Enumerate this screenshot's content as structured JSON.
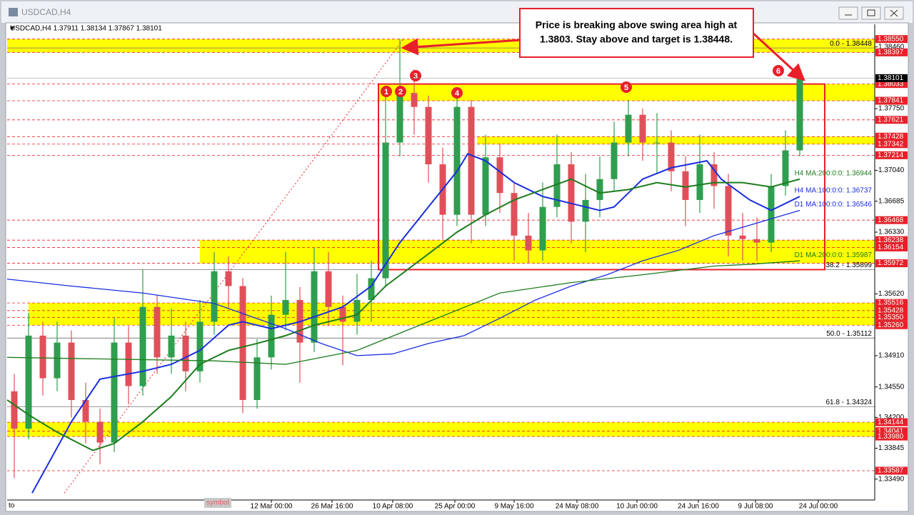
{
  "window_title": "USDCAD,H4",
  "chart_data": {
    "type": "candlestick",
    "info_line": "USDCAD,H4  1.37911 1.38134 1.37867 1.38101",
    "axis_extra": [
      "to",
      "symbol"
    ],
    "colors": {
      "up": "#2f9e4f",
      "down": "#e0505a"
    },
    "open": [
      1.345,
      1.3407,
      1.3514,
      1.3465,
      1.3506,
      1.344,
      1.3415,
      1.3391,
      1.3506,
      1.3456,
      1.3547,
      1.3489,
      1.3514,
      1.3473,
      1.353,
      1.3588,
      1.3571,
      1.344,
      1.3489,
      1.3538,
      1.3555,
      1.3506,
      1.3588,
      1.3547,
      1.353,
      1.3555,
      1.358,
      1.3736,
      1.3793,
      1.3777,
      1.3711,
      1.3653,
      1.3777,
      1.3653,
      1.3719,
      1.3678,
      1.3629,
      1.3612,
      1.3662,
      1.3711,
      1.3645,
      1.367,
      1.3694,
      1.3736,
      1.3768,
      1.3736,
      1.3736,
      1.3703,
      1.367,
      1.3711,
      1.3686,
      1.3629,
      1.3625,
      1.3621,
      1.3686,
      1.3727
    ],
    "high": [
      1.347,
      1.354,
      1.353,
      1.353,
      1.352,
      1.346,
      1.343,
      1.3535,
      1.3525,
      1.359,
      1.356,
      1.3545,
      1.353,
      1.3555,
      1.361,
      1.3605,
      1.358,
      1.351,
      1.356,
      1.361,
      1.357,
      1.3615,
      1.361,
      1.356,
      1.3585,
      1.36,
      1.379,
      1.3855,
      1.382,
      1.379,
      1.373,
      1.379,
      1.3785,
      1.3745,
      1.3735,
      1.369,
      1.3655,
      1.369,
      1.3745,
      1.3725,
      1.37,
      1.372,
      1.376,
      1.3785,
      1.3775,
      1.377,
      1.375,
      1.372,
      1.3745,
      1.3725,
      1.37,
      1.3655,
      1.365,
      1.37,
      1.375,
      1.3813
    ],
    "low": [
      1.335,
      1.3395,
      1.3445,
      1.345,
      1.342,
      1.339,
      1.3366,
      1.338,
      1.3435,
      1.3445,
      1.347,
      1.347,
      1.345,
      1.346,
      1.3515,
      1.3545,
      1.3425,
      1.343,
      1.3475,
      1.352,
      1.346,
      1.3495,
      1.3525,
      1.348,
      1.3515,
      1.353,
      1.357,
      1.372,
      1.3745,
      1.369,
      1.3625,
      1.364,
      1.362,
      1.364,
      1.3655,
      1.36,
      1.3597,
      1.36,
      1.365,
      1.362,
      1.361,
      1.365,
      1.368,
      1.372,
      1.3715,
      1.37,
      1.368,
      1.364,
      1.3655,
      1.366,
      1.3605,
      1.36,
      1.36,
      1.361,
      1.3675,
      1.372
    ],
    "close": [
      1.3407,
      1.3514,
      1.3465,
      1.3506,
      1.344,
      1.3415,
      1.3391,
      1.3506,
      1.3456,
      1.3547,
      1.3489,
      1.3514,
      1.3473,
      1.353,
      1.3588,
      1.3571,
      1.344,
      1.3489,
      1.3538,
      1.3555,
      1.3506,
      1.3588,
      1.3547,
      1.353,
      1.3555,
      1.358,
      1.3736,
      1.3793,
      1.3777,
      1.3711,
      1.3653,
      1.3777,
      1.3653,
      1.3719,
      1.3678,
      1.3629,
      1.3612,
      1.3662,
      1.3711,
      1.3645,
      1.367,
      1.3694,
      1.3736,
      1.3768,
      1.3736,
      1.3736,
      1.3703,
      1.367,
      1.3711,
      1.3686,
      1.3629,
      1.3625,
      1.3621,
      1.3686,
      1.3727,
      1.381
    ],
    "xlim": [
      -0.5,
      60.25
    ],
    "xticks": [
      {
        "value": 18,
        "label": "12 Mar 00:00"
      },
      {
        "value": 22.25,
        "label": "26 Mar 16:00"
      },
      {
        "value": 26.5,
        "label": "10 Apr 08:00"
      },
      {
        "value": 30.85,
        "label": "25 Apr 00:00"
      },
      {
        "value": 35,
        "label": "9 May 16:00"
      },
      {
        "value": 39.4,
        "label": "24 May 08:00"
      },
      {
        "value": 43.6,
        "label": "10 Jun 00:00"
      },
      {
        "value": 47.9,
        "label": "24 Jun 16:00"
      },
      {
        "value": 51.9,
        "label": "9 Jul 08:00"
      },
      {
        "value": 56.3,
        "label": "24 Jul 00:00"
      }
    ],
    "ylim": [
      1.3325,
      1.3872
    ],
    "yticks": [
      {
        "value": 1.3846,
        "label": "1.38460"
      },
      {
        "value": 1.3775,
        "label": "1.37750"
      },
      {
        "value": 1.3704,
        "label": "1.37040"
      },
      1.36685,
      {
        "value": 1.3633,
        "label": "1.36330"
      },
      {
        "value": 1.3562,
        "label": "1.35620"
      },
      {
        "value": 1.3491,
        "label": "1.34910"
      },
      {
        "value": 1.3455,
        "label": "1.34550"
      },
      {
        "value": 1.342,
        "label": "1.34200"
      },
      1.33845,
      {
        "value": 1.3349,
        "label": "1.33490"
      }
    ],
    "current_price": 1.38101,
    "levels": [
      {
        "value": 1.3855,
        "label": "1.38550"
      },
      1.38397,
      1.38033,
      1.37841,
      1.37621,
      1.37428,
      1.37342,
      1.37214,
      1.36468,
      1.36238,
      1.36154,
      1.35972,
      1.35516,
      1.35428,
      {
        "value": 1.3535,
        "label": "1.35350"
      },
      {
        "value": 1.3526,
        "label": "1.35260"
      },
      1.34144,
      1.34041,
      {
        "value": 1.3398,
        "label": "1.33980"
      },
      1.33587
    ],
    "zones": [
      {
        "low": 1.38397,
        "high": 1.3855,
        "start": -0.5
      },
      {
        "low": 1.37841,
        "high": 1.38033,
        "start": 25.5
      },
      {
        "low": 1.37342,
        "high": 1.37428,
        "start": 32.4
      },
      {
        "low": 1.35972,
        "high": 1.36238,
        "start": 13
      },
      {
        "low": 1.3526,
        "high": 1.35516,
        "start": 1
      },
      {
        "low": 1.3398,
        "high": 1.34144,
        "start": -0.5
      }
    ],
    "range_box": {
      "start": 25.5,
      "end": 56.75,
      "high": 1.38033,
      "low": 1.35899
    },
    "fib_levels": [
      {
        "value": 1.38448,
        "label": "0.0 - 1.38448"
      },
      {
        "value": 1.35899,
        "label": "38.2 - 1.35899"
      },
      {
        "value": 1.35112,
        "label": "50.0 - 1.35112"
      },
      {
        "value": 1.34324,
        "label": "61.8 - 1.34324"
      }
    ],
    "fib_line": {
      "x": [
        3.5,
        27.25
      ],
      "values": [
        1.3333,
        1.3855
      ]
    },
    "series": [
      {
        "name": "H4 MA:100:0:0: 1.36737",
        "color": "#1a2ee0",
        "width": 2,
        "x": [
          1.25,
          4,
          6,
          9,
          11,
          13,
          15,
          16,
          18,
          20,
          23,
          25,
          27,
          29,
          31,
          31.75,
          33,
          35,
          37,
          39,
          41,
          42,
          43,
          44,
          46,
          48.5,
          49.5,
          51.5,
          53,
          55
        ],
        "values": [
          1.3333,
          1.3415,
          1.3464,
          1.3473,
          1.3481,
          1.3497,
          1.3526,
          1.353,
          1.3522,
          1.353,
          1.3547,
          1.3571,
          1.3621,
          1.3662,
          1.3703,
          1.3723,
          1.3715,
          1.369,
          1.3674,
          1.3666,
          1.3658,
          1.3662,
          1.3678,
          1.3694,
          1.3707,
          1.3715,
          1.3694,
          1.367,
          1.3658,
          1.3674
        ]
      },
      {
        "name": "H4 MA:200:0:0: 1.36944",
        "color": "#1e7d1e",
        "width": 2,
        "x": [
          -0.5,
          1,
          3,
          5.5,
          7,
          9,
          11,
          13,
          15,
          17,
          19,
          21,
          24,
          26,
          29,
          31,
          33,
          35,
          37,
          39,
          41,
          43,
          45,
          47,
          49,
          51,
          53,
          55
        ],
        "values": [
          1.344,
          1.3423,
          1.3403,
          1.3382,
          1.339,
          1.3415,
          1.3444,
          1.3481,
          1.3497,
          1.3505,
          1.3514,
          1.3526,
          1.3538,
          1.3571,
          1.3608,
          1.3633,
          1.3653,
          1.367,
          1.3682,
          1.3694,
          1.3678,
          1.3682,
          1.369,
          1.3685,
          1.369,
          1.369,
          1.3685,
          1.3694
        ]
      },
      {
        "name": "D1 MA:100:0:0: 1.36546",
        "color": "#1a2ee0",
        "width": 1.3,
        "x": [
          -0.5,
          4,
          9,
          14,
          19,
          21.5,
          24,
          26.5,
          29,
          31.5,
          34,
          36.5,
          39,
          41.5,
          44,
          46.5,
          49,
          51.5,
          55
        ],
        "values": [
          1.3579,
          1.3571,
          1.3563,
          1.3551,
          1.3522,
          1.3505,
          1.3491,
          1.3493,
          1.3505,
          1.3514,
          1.3534,
          1.3555,
          1.3571,
          1.3584,
          1.36,
          1.3612,
          1.3629,
          1.3641,
          1.3658
        ]
      },
      {
        "name": "D1 MA:200:0:0: 1.35987",
        "color": "#1e7d1e",
        "width": 1.3,
        "x": [
          -0.5,
          14,
          19,
          24,
          29,
          34,
          39,
          44,
          49,
          51.5,
          55
        ],
        "values": [
          1.3489,
          1.3485,
          1.3481,
          1.3497,
          1.353,
          1.3563,
          1.3575,
          1.3584,
          1.3594,
          1.3596,
          1.36
        ]
      }
    ],
    "markers": [
      "1",
      "2",
      "3",
      "4",
      "5",
      "6"
    ],
    "annotation": [
      "Price is breaking above swing area high at",
      "1.3803.  Stay above and target is 1.38448."
    ]
  }
}
